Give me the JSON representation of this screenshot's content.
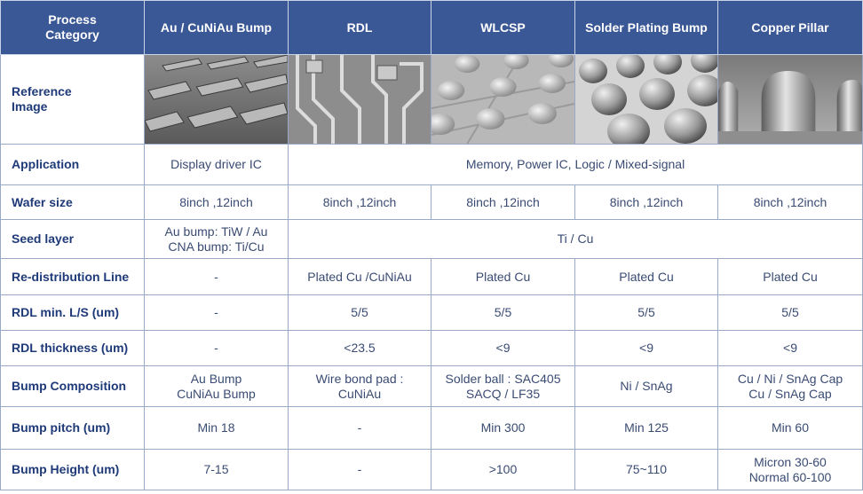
{
  "header": {
    "category_label": "Process Category",
    "columns": [
      "Au / CuNiAu Bump",
      "RDL",
      "WLCSP",
      "Solder Plating Bump",
      "Copper Pillar"
    ]
  },
  "image_row": {
    "label": "Reference Image",
    "images": [
      "au-bump-photo",
      "rdl-photo",
      "wlcsp-photo",
      "solder-plating-bump-photo",
      "copper-pillar-photo"
    ]
  },
  "rows": {
    "application": {
      "label": "Application",
      "col1": "Display driver IC",
      "span": "Memory, Power IC, Logic / Mixed-signal"
    },
    "wafer_size": {
      "label": "Wafer size",
      "values": [
        "8inch ,12inch",
        "8inch ,12inch",
        "8inch ,12inch",
        "8inch ,12inch",
        "8inch ,12inch"
      ]
    },
    "seed_layer": {
      "label": "Seed layer",
      "col1": [
        "Au bump: TiW / Au",
        "CNA bump: Ti/Cu"
      ],
      "span": "Ti / Cu"
    },
    "rdl_line": {
      "label": "Re-distribution Line",
      "values": [
        "-",
        "Plated Cu /CuNiAu",
        "Plated Cu",
        "Plated Cu",
        "Plated Cu"
      ]
    },
    "rdl_ls": {
      "label": "RDL min. L/S (um)",
      "values": [
        "-",
        "5/5",
        "5/5",
        "5/5",
        "5/5"
      ]
    },
    "rdl_thickness": {
      "label": "RDL thickness (um)",
      "values": [
        "-",
        "<23.5",
        "<9",
        "<9",
        "<9"
      ]
    },
    "bump_comp": {
      "label": "Bump Composition",
      "values": [
        [
          "Au Bump",
          "CuNiAu Bump"
        ],
        [
          "Wire bond pad :",
          "CuNiAu"
        ],
        [
          "Solder ball : SAC405",
          "SACQ / LF35"
        ],
        [
          "Ni / SnAg"
        ],
        [
          "Cu / Ni / SnAg Cap",
          "Cu / SnAg Cap"
        ]
      ]
    },
    "bump_pitch": {
      "label": "Bump pitch (um)",
      "values": [
        "Min 18",
        "-",
        "Min 300",
        "Min 125",
        "Min 60"
      ]
    },
    "bump_height": {
      "label": "Bump Height (um)",
      "values": [
        [
          "7-15"
        ],
        [
          "-"
        ],
        [
          ">100"
        ],
        [
          "75~110"
        ],
        [
          "Micron 30-60",
          "Normal 60-100"
        ]
      ]
    }
  },
  "colors": {
    "header_bg": "#3a5796",
    "header_text": "#ffffff",
    "row_label": "#1f3a78",
    "cell_text": "#3a4b73",
    "border": "#9aa9c7"
  }
}
